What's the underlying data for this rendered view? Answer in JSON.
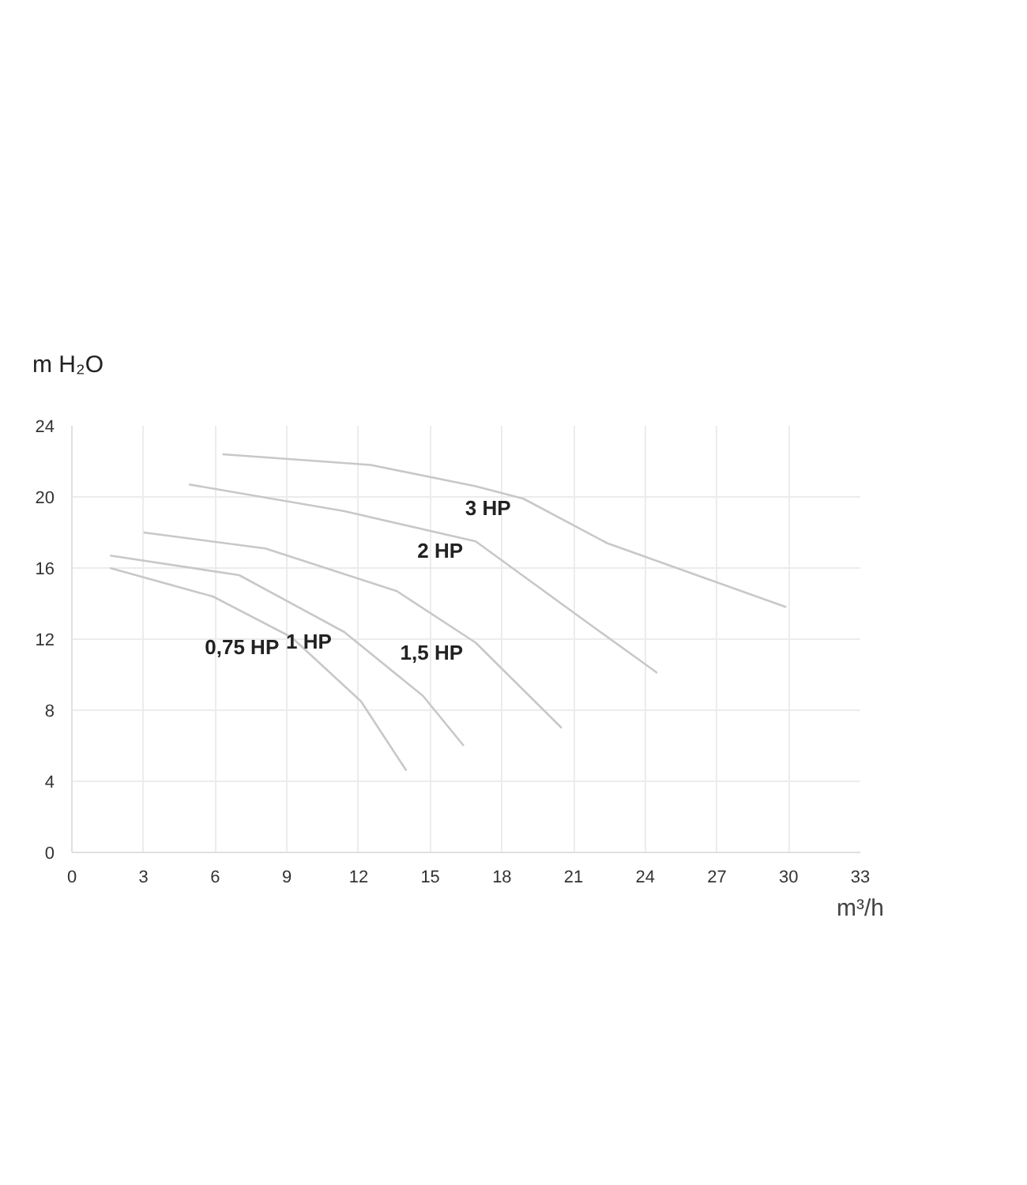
{
  "chart_data": {
    "type": "line",
    "xlabel": "m³/h",
    "ylabel": "m H₂O",
    "xlim": [
      0,
      33
    ],
    "ylim": [
      0,
      24
    ],
    "xticks": [
      0,
      3,
      6,
      9,
      12,
      15,
      18,
      21,
      24,
      27,
      30,
      33
    ],
    "yticks": [
      0,
      4,
      8,
      12,
      16,
      20,
      24
    ],
    "grid": true,
    "line_style": "solid",
    "series": [
      {
        "name": "0,75 HP",
        "color": "#c8c8c8",
        "x": [
          1.6,
          5.9,
          9.2,
          12.1,
          14.0
        ],
        "values": [
          16.0,
          14.4,
          12.1,
          8.5,
          4.6
        ]
      },
      {
        "name": "1 HP",
        "color": "#c8c8c8",
        "x": [
          1.6,
          7.0,
          11.4,
          14.7,
          16.4
        ],
        "values": [
          16.7,
          15.6,
          12.4,
          8.8,
          6.0
        ]
      },
      {
        "name": "1,5 HP",
        "color": "#c8c8c8",
        "x": [
          3.0,
          8.1,
          13.6,
          16.9,
          18.7,
          20.5
        ],
        "values": [
          18.0,
          17.1,
          14.7,
          11.8,
          9.4,
          7.0
        ]
      },
      {
        "name": "2 HP",
        "color": "#c8c8c8",
        "x": [
          4.9,
          11.4,
          16.9,
          21.3,
          24.5
        ],
        "values": [
          20.7,
          19.2,
          17.5,
          13.2,
          10.1
        ]
      },
      {
        "name": "3 HP",
        "color": "#c8c8c8",
        "x": [
          6.3,
          12.5,
          16.9,
          18.9,
          22.4,
          29.9
        ],
        "values": [
          22.4,
          21.8,
          20.6,
          19.9,
          17.4,
          13.8
        ]
      }
    ]
  }
}
